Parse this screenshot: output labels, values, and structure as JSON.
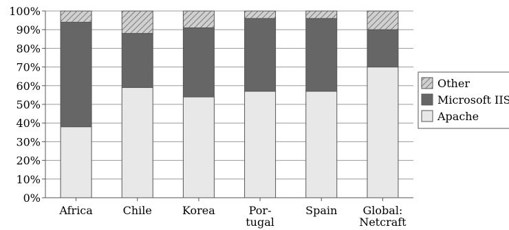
{
  "chart_data": {
    "type": "bar",
    "stacked": true,
    "categories": [
      "Africa",
      "Chile",
      "Korea",
      "Por-\ntugal",
      "Spain",
      "Global:\nNetcraft"
    ],
    "series": [
      {
        "name": "Apache",
        "values": [
          38,
          59,
          54,
          57,
          57,
          70
        ],
        "color": "#e8e8e8",
        "pattern": "solid"
      },
      {
        "name": "Microsoft IIS",
        "values": [
          56,
          29,
          37,
          39,
          39,
          20
        ],
        "color": "#666666",
        "pattern": "solid"
      },
      {
        "name": "Other",
        "values": [
          6,
          12,
          9,
          4,
          4,
          10
        ],
        "color": "#bbbbbb",
        "pattern": "hatch"
      }
    ],
    "legend_order": [
      "Other",
      "Microsoft IIS",
      "Apache"
    ],
    "title": "",
    "xlabel": "",
    "ylabel": "",
    "ylim": [
      0,
      100
    ],
    "yticks": [
      "0%",
      "10%",
      "20%",
      "30%",
      "40%",
      "50%",
      "60%",
      "70%",
      "80%",
      "90%",
      "100%"
    ],
    "grid": true,
    "legend_position": "right"
  }
}
